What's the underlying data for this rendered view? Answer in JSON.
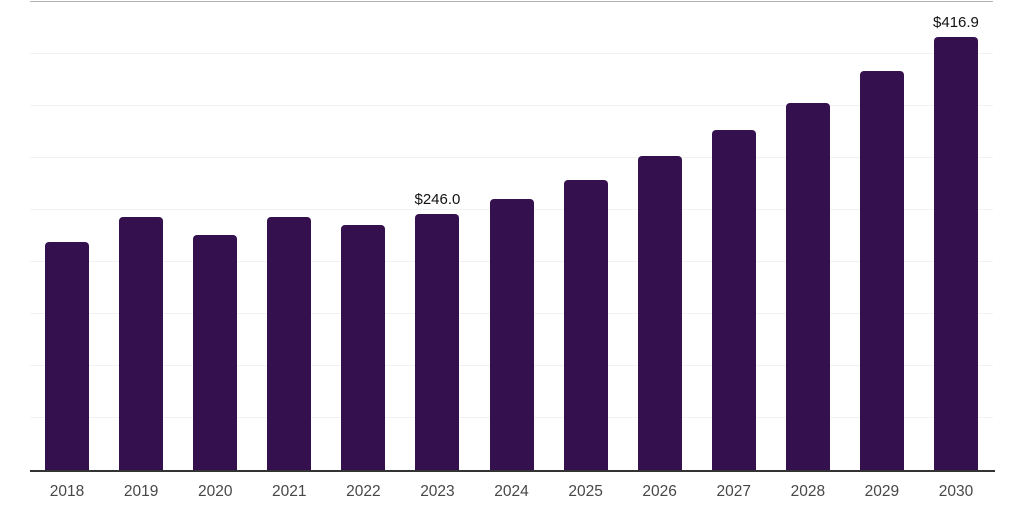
{
  "chart_data": {
    "type": "bar",
    "title": "",
    "xlabel": "",
    "ylabel": "",
    "categories": [
      "2018",
      "2019",
      "2020",
      "2021",
      "2022",
      "2023",
      "2024",
      "2025",
      "2026",
      "2027",
      "2028",
      "2029",
      "2030"
    ],
    "values": [
      219,
      243,
      226,
      243,
      236,
      246.0,
      261,
      279,
      302,
      327,
      353,
      384,
      416.9
    ],
    "value_labels": [
      "",
      "",
      "",
      "",
      "",
      "$246.0",
      "",
      "",
      "",
      "",
      "",
      "",
      "$416.9"
    ],
    "ylim": [
      0,
      452
    ],
    "gridline_step": 50,
    "gridline_max": 450,
    "grid": "horizontal",
    "legend": "none",
    "colors": {
      "bar": "#34104E",
      "axis": "#333333",
      "gridline": "#f2f2f2",
      "top_gridline": "#b3b3b3",
      "tick_label": "#474747",
      "value_label": "#111111",
      "background": "#ffffff"
    }
  }
}
